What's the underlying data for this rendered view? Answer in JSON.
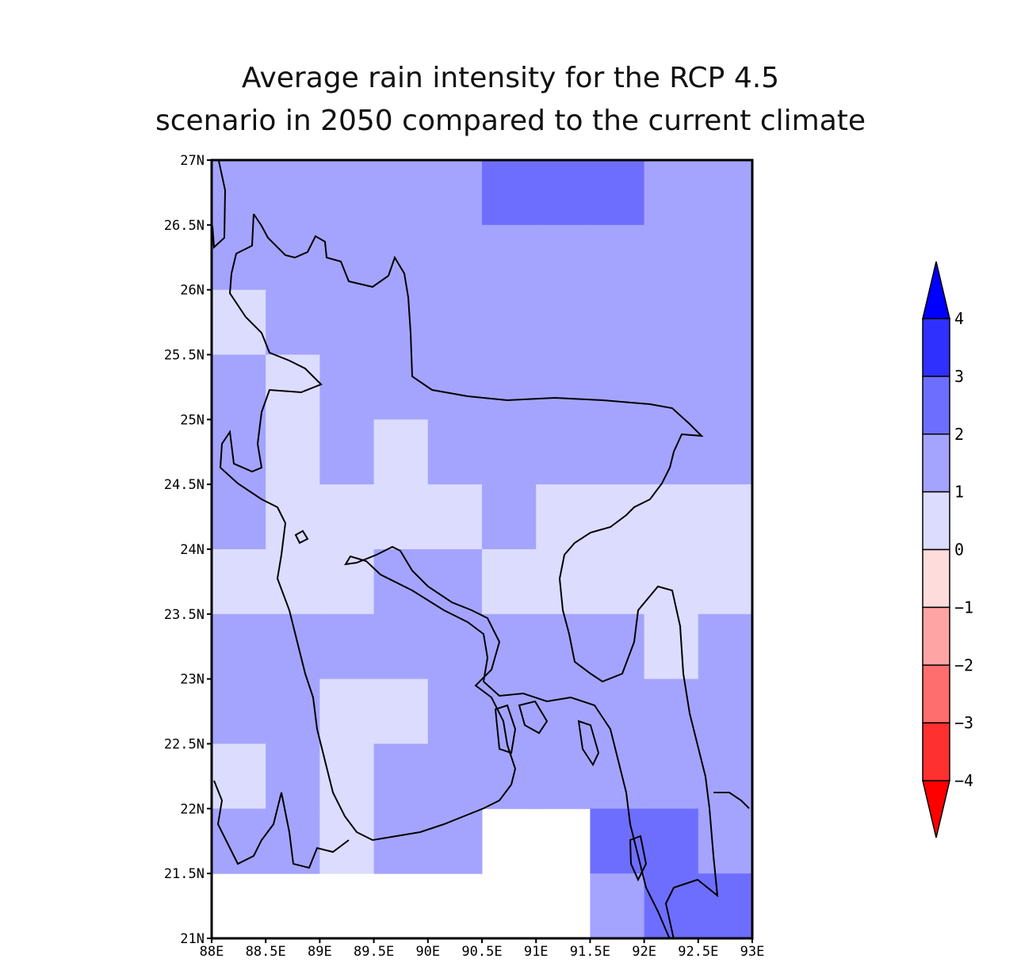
{
  "title": {
    "line1": "Average rain intensity for the RCP 4.5",
    "line2": "scenario in 2050 compared to the current climate"
  },
  "chart_data": {
    "type": "heatmap",
    "x_axis": {
      "range": [
        88,
        93
      ],
      "ticks": [
        88,
        88.5,
        89,
        89.5,
        90,
        90.5,
        91,
        91.5,
        92,
        92.5,
        93
      ],
      "tick_labels": [
        "88E",
        "88.5E",
        "89E",
        "89.5E",
        "90E",
        "90.5E",
        "91E",
        "91.5E",
        "92E",
        "92.5E",
        "93E"
      ]
    },
    "y_axis": {
      "range": [
        21,
        27
      ],
      "ticks": [
        21,
        21.5,
        22,
        22.5,
        23,
        23.5,
        24,
        24.5,
        25,
        25.5,
        26,
        26.5,
        27
      ],
      "tick_labels": [
        "21N",
        "21.5N",
        "22N",
        "22.5N",
        "23N",
        "23.5N",
        "24N",
        "24.5N",
        "25N",
        "25.5N",
        "26N",
        "26.5N",
        "27N"
      ]
    },
    "grid": {
      "lon_edges": [
        88,
        88.5,
        89,
        89.5,
        90,
        90.5,
        91,
        91.5,
        92,
        92.5,
        93
      ],
      "lat_edges": [
        21,
        21.5,
        22,
        22.5,
        23,
        23.5,
        24,
        24.5,
        25,
        25.5,
        26,
        26.5,
        27
      ],
      "note_rows_from_north": true,
      "values": [
        [
          1.5,
          1.5,
          1.5,
          1.5,
          1.5,
          2.5,
          2.5,
          2.5,
          1.5,
          1.5
        ],
        [
          1.5,
          1.5,
          1.5,
          1.5,
          1.5,
          1.5,
          1.5,
          1.5,
          1.5,
          1.5
        ],
        [
          0.5,
          1.5,
          1.5,
          1.5,
          1.5,
          1.5,
          1.5,
          1.5,
          1.5,
          1.5
        ],
        [
          1.5,
          0.5,
          1.5,
          1.5,
          1.5,
          1.5,
          1.5,
          1.5,
          1.5,
          1.5
        ],
        [
          1.5,
          0.5,
          1.5,
          0.5,
          1.5,
          1.5,
          1.5,
          1.5,
          1.5,
          1.5
        ],
        [
          1.5,
          0.5,
          0.5,
          0.5,
          0.5,
          1.5,
          0.5,
          0.5,
          0.5,
          0.5
        ],
        [
          0.5,
          0.5,
          0.5,
          1.5,
          1.5,
          0.5,
          0.5,
          0.5,
          0.5,
          0.5
        ],
        [
          1.5,
          1.5,
          1.5,
          1.5,
          1.5,
          1.5,
          1.5,
          1.5,
          0.5,
          1.5
        ],
        [
          1.5,
          1.5,
          0.5,
          0.5,
          1.5,
          1.5,
          1.5,
          1.5,
          1.5,
          1.5
        ],
        [
          0.5,
          1.5,
          0.5,
          1.5,
          1.5,
          1.5,
          1.5,
          1.5,
          1.5,
          1.5
        ],
        [
          1.5,
          1.5,
          0.5,
          1.5,
          1.5,
          null,
          null,
          2.5,
          2.5,
          1.5
        ],
        [
          null,
          null,
          null,
          null,
          null,
          null,
          null,
          1.5,
          2.5,
          2.5
        ]
      ]
    },
    "colorbar": {
      "levels": [
        -4,
        -3,
        -2,
        -1,
        0,
        1,
        2,
        3,
        4
      ],
      "labels": [
        "−4",
        "−3",
        "−2",
        "−1",
        "0",
        "1",
        "2",
        "3",
        "4"
      ],
      "colors": [
        "#fe3030",
        "#fe6e6e",
        "#fea4a4",
        "#fedcdc",
        "#dcdcfe",
        "#a4a4fe",
        "#6e6efe",
        "#3030fe"
      ],
      "under_color": "#fe0000",
      "over_color": "#0000fe"
    }
  }
}
